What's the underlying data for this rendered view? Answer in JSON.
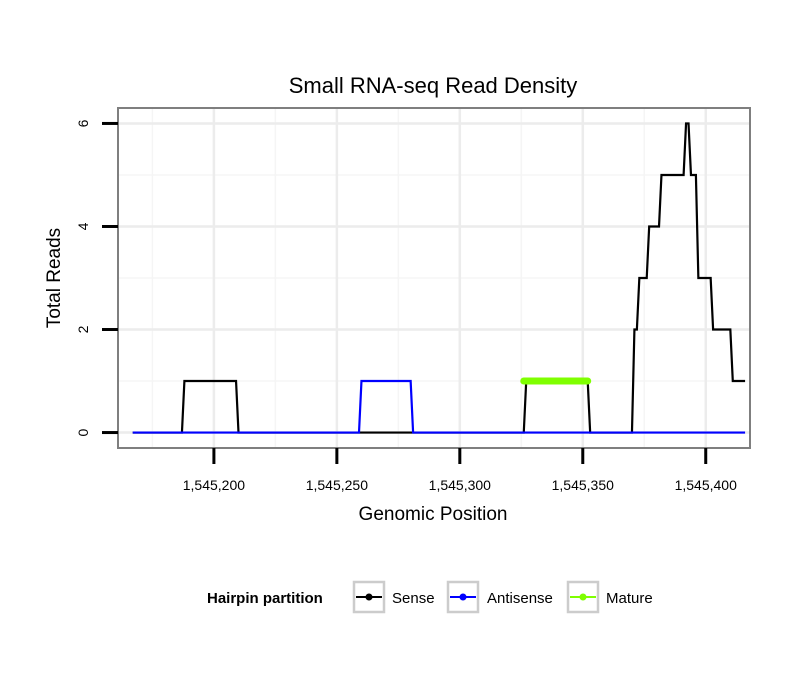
{
  "chart_data": {
    "type": "line",
    "title": "Small RNA-seq Read Density",
    "xlabel": "Genomic Position",
    "ylabel": "Total Reads",
    "xlim": [
      1545161,
      1545418
    ],
    "ylim": [
      -0.3,
      6.3
    ],
    "x_ticks": [
      1545200,
      1545250,
      1545300,
      1545350,
      1545400
    ],
    "x_tick_labels": [
      "1,545,200",
      "1,545,250",
      "1,545,300",
      "1,545,350",
      "1,545,400"
    ],
    "y_ticks": [
      0,
      2,
      4,
      6
    ],
    "y_tick_labels": [
      "0",
      "2",
      "4",
      "6"
    ],
    "grid": true,
    "legend": {
      "title": "Hairpin partition",
      "position": "bottom",
      "entries": [
        "Sense",
        "Antisense",
        "Mature"
      ]
    },
    "series": [
      {
        "name": "Sense",
        "color": "#000000",
        "step": true,
        "x": [
          1545167,
          1545187,
          1545188,
          1545209,
          1545210,
          1545326,
          1545327,
          1545352,
          1545353,
          1545370,
          1545371,
          1545372,
          1545373,
          1545376,
          1545377,
          1545381,
          1545382,
          1545385,
          1545386,
          1545391,
          1545392,
          1545393,
          1545394,
          1545396,
          1545397,
          1545402,
          1545403,
          1545410,
          1545411,
          1545416
        ],
        "values": [
          0,
          0,
          1,
          1,
          0,
          0,
          1,
          1,
          0,
          0,
          2,
          2,
          3,
          3,
          4,
          4,
          5,
          5,
          5,
          5,
          6,
          6,
          5,
          5,
          3,
          3,
          2,
          2,
          1,
          1
        ]
      },
      {
        "name": "Antisense",
        "color": "#0000ff",
        "step": true,
        "x": [
          1545167,
          1545259,
          1545260,
          1545280,
          1545281,
          1545416
        ],
        "values": [
          0,
          0,
          1,
          1,
          0,
          0
        ]
      },
      {
        "name": "Mature",
        "color": "#7fff00",
        "x": [
          1545326,
          1545352
        ],
        "values": [
          1,
          1
        ]
      }
    ]
  }
}
